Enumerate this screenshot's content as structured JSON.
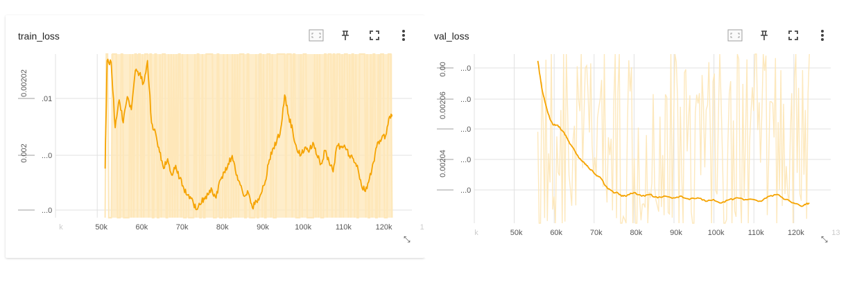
{
  "colors": {
    "line": "#f5a300",
    "raw": "#fde7b8",
    "grid": "#e0e0e0",
    "tick": "#555555",
    "faint_tick": "#cccccc"
  },
  "icons": [
    "fit-domain-icon",
    "pin-icon",
    "fullscreen-icon",
    "more-vert-icon",
    "resize-handle-icon"
  ],
  "chart_data": [
    {
      "type": "line",
      "title": "train_loss",
      "x_ticks": [
        "k",
        "50k",
        "60k",
        "70k",
        "80k",
        "90k",
        "100k",
        "110k",
        "120k",
        "13"
      ],
      "y_tick_labels": [
        "...0",
        ".01",
        "...0"
      ],
      "y_axis_outer_labels": [
        "0.00202",
        "0.002"
      ],
      "xlim": [
        40000,
        130000
      ],
      "grid": true,
      "series": [
        {
          "x": [
            52500,
            53000,
            54000,
            55000,
            56000,
            57000,
            58000,
            59000,
            60000,
            61000,
            62000,
            63000,
            64000,
            65000,
            66000,
            67000,
            68000,
            69000,
            70000,
            71000,
            72000,
            73000,
            74000,
            75000,
            76000,
            77000,
            78000,
            79000,
            80000,
            81000,
            82000,
            83000,
            84000,
            85000,
            86000,
            87000,
            88000,
            89000,
            90000,
            91000,
            92000,
            93000,
            94000,
            95000,
            96000,
            97000,
            98000,
            99000,
            100000,
            101000,
            102000,
            103000,
            104000,
            105000,
            106000,
            107000,
            108000,
            109000,
            110000,
            111000,
            112000,
            113000,
            114000,
            115000,
            116000,
            117000,
            118000,
            119000,
            120000,
            121000,
            122000,
            123000,
            123600
          ],
          "y": [
            0.3,
            0.96,
            0.95,
            0.55,
            0.72,
            0.58,
            0.74,
            0.66,
            0.9,
            0.88,
            0.82,
            0.96,
            0.58,
            0.52,
            0.4,
            0.3,
            0.36,
            0.26,
            0.32,
            0.24,
            0.18,
            0.14,
            0.12,
            0.05,
            0.08,
            0.12,
            0.14,
            0.17,
            0.12,
            0.23,
            0.28,
            0.33,
            0.38,
            0.26,
            0.2,
            0.13,
            0.15,
            0.06,
            0.1,
            0.14,
            0.2,
            0.33,
            0.42,
            0.46,
            0.54,
            0.75,
            0.62,
            0.53,
            0.42,
            0.38,
            0.43,
            0.4,
            0.46,
            0.38,
            0.33,
            0.41,
            0.34,
            0.28,
            0.44,
            0.43,
            0.43,
            0.38,
            0.36,
            0.32,
            0.2,
            0.16,
            0.24,
            0.34,
            0.46,
            0.48,
            0.5,
            0.62,
            0.63
          ]
        }
      ]
    },
    {
      "type": "line",
      "title": "val_loss",
      "x_ticks": [
        "k",
        "50k",
        "60k",
        "70k",
        "80k",
        "90k",
        "100k",
        "110k",
        "120k",
        "13"
      ],
      "y_tick_labels": [
        "...0",
        "...0",
        "...0",
        "...0",
        "...0"
      ],
      "y_axis_outer_labels": [
        "0.00",
        "0.00206",
        "0.00204"
      ],
      "xlim": [
        40000,
        130000
      ],
      "grid": true,
      "series": [
        {
          "x": [
            56000,
            57000,
            58000,
            59000,
            60000,
            61000,
            62000,
            63000,
            64000,
            65000,
            66000,
            67000,
            68000,
            69000,
            70000,
            71000,
            72000,
            73000,
            74000,
            75000,
            76000,
            77000,
            78000,
            79000,
            80000,
            82000,
            84000,
            86000,
            88000,
            90000,
            92000,
            94000,
            96000,
            98000,
            100000,
            102000,
            104000,
            106000,
            108000,
            110000,
            112000,
            114000,
            116000,
            118000,
            120000,
            122000,
            123000,
            124000
          ],
          "y": [
            0.96,
            0.8,
            0.7,
            0.62,
            0.58,
            0.58,
            0.55,
            0.52,
            0.47,
            0.44,
            0.4,
            0.37,
            0.35,
            0.32,
            0.3,
            0.28,
            0.26,
            0.22,
            0.2,
            0.18,
            0.18,
            0.16,
            0.16,
            0.17,
            0.18,
            0.16,
            0.17,
            0.15,
            0.16,
            0.15,
            0.16,
            0.14,
            0.15,
            0.13,
            0.14,
            0.12,
            0.14,
            0.15,
            0.14,
            0.14,
            0.13,
            0.16,
            0.17,
            0.14,
            0.12,
            0.1,
            0.11,
            0.12
          ]
        }
      ]
    }
  ]
}
